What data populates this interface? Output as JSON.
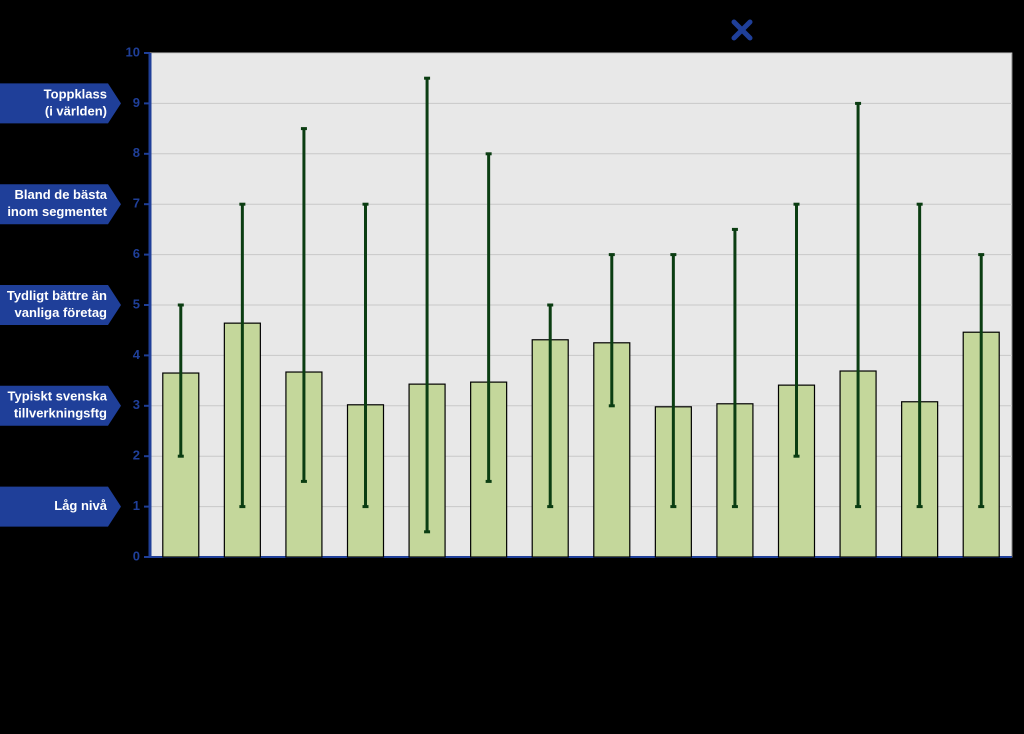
{
  "chart_data": {
    "type": "bar",
    "categories": [
      null,
      null,
      null,
      null,
      null,
      null,
      null,
      null,
      null,
      null,
      null,
      null,
      null,
      null
    ],
    "values": [
      3.65,
      4.64,
      3.67,
      3.02,
      3.43,
      3.47,
      4.31,
      4.25,
      2.98,
      3.04,
      3.41,
      3.69,
      3.08,
      4.46
    ],
    "low": [
      2,
      1,
      1.5,
      1,
      0.5,
      1.5,
      1,
      3,
      1,
      1,
      2,
      1,
      1,
      1
    ],
    "high": [
      5,
      7,
      8.5,
      7,
      9.5,
      8,
      5,
      6,
      6,
      6.5,
      7,
      9,
      7,
      6
    ],
    "color": "#c4d79b",
    "error_color": "#0b3d12",
    "ylim": [
      0,
      10
    ],
    "yticks": [
      0,
      1,
      2,
      3,
      4,
      5,
      6,
      7,
      8,
      9,
      10
    ],
    "grid": true,
    "level_labels": [
      {
        "value": 9,
        "lines": [
          "Toppklass",
          "(i världen)"
        ]
      },
      {
        "value": 7,
        "lines": [
          "Bland  de bästa",
          "inom segmentet"
        ]
      },
      {
        "value": 5,
        "lines": [
          "Tydligt bättre än",
          "vanliga företag"
        ]
      },
      {
        "value": 3,
        "lines": [
          "Typiskt svenska",
          "tillverkningsftg"
        ]
      },
      {
        "value": 1,
        "lines": [
          "Låg nivå"
        ]
      }
    ]
  }
}
